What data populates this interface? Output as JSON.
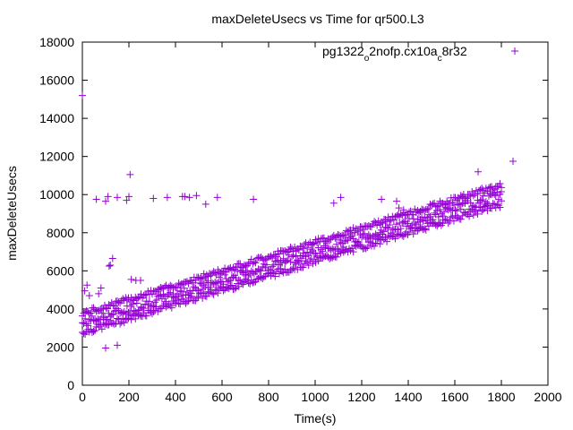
{
  "chart_data": {
    "type": "scatter",
    "title": "maxDeleteUsecs vs Time for qr500.L3",
    "xlabel": "Time(s)",
    "ylabel": "maxDeleteUsecs",
    "xlim": [
      0,
      2000
    ],
    "ylim": [
      0,
      18000
    ],
    "xticks": [
      0,
      200,
      400,
      600,
      800,
      1000,
      1200,
      1400,
      1600,
      1800,
      2000
    ],
    "yticks": [
      0,
      2000,
      4000,
      6000,
      8000,
      10000,
      12000,
      14000,
      16000,
      18000
    ],
    "grid": false,
    "legend_position": "top-right",
    "marker": "+",
    "series": [
      {
        "name": "pg1322_o2nofp.cx10a_c8r32",
        "legend_parts": [
          "pg1322",
          "o",
          "2nofp.cx10a",
          "c",
          "8r32"
        ],
        "color": "#9400d3",
        "trend": {
          "x_start": 0,
          "x_end": 1800,
          "y_start": 3250,
          "y_end": 10000,
          "lower_band_offset": -650,
          "upper_band_offset": 350,
          "step": 6
        },
        "points": [
          [
            0,
            15200
          ],
          [
            10,
            4950
          ],
          [
            20,
            5250
          ],
          [
            30,
            4700
          ],
          [
            70,
            4800
          ],
          [
            80,
            5100
          ],
          [
            100,
            1950
          ],
          [
            150,
            2100
          ],
          [
            120,
            6300
          ],
          [
            130,
            6650
          ],
          [
            115,
            6250
          ],
          [
            60,
            9750
          ],
          [
            100,
            9650
          ],
          [
            110,
            9900
          ],
          [
            150,
            9850
          ],
          [
            200,
            9900
          ],
          [
            205,
            11050
          ],
          [
            190,
            9700
          ],
          [
            230,
            5500
          ],
          [
            250,
            5500
          ],
          [
            210,
            5550
          ],
          [
            305,
            9800
          ],
          [
            365,
            9850
          ],
          [
            430,
            9900
          ],
          [
            440,
            9900
          ],
          [
            460,
            9850
          ],
          [
            490,
            9950
          ],
          [
            530,
            9500
          ],
          [
            580,
            9850
          ],
          [
            735,
            9750
          ],
          [
            1080,
            9550
          ],
          [
            1110,
            9850
          ],
          [
            1285,
            9750
          ],
          [
            1350,
            9650
          ],
          [
            1360,
            9300
          ],
          [
            1380,
            9200
          ],
          [
            1700,
            11200
          ],
          [
            1850,
            11750
          ]
        ]
      }
    ]
  }
}
